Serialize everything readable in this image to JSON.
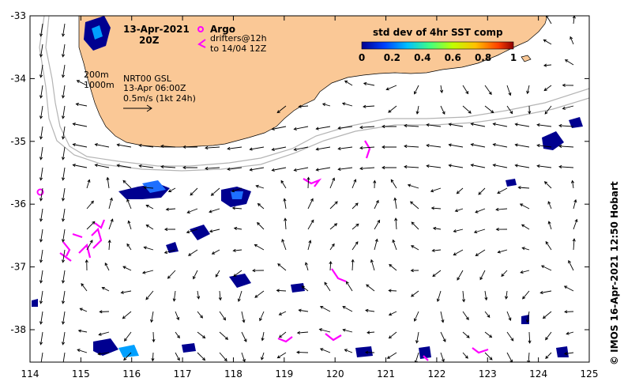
{
  "header": {
    "date": "13-Apr-2021",
    "time": "20Z"
  },
  "legend": {
    "argo_label": "Argo",
    "drifters_label_1": "drifters@12h",
    "drifters_label_2": "to 14/04 12Z",
    "argo_color": "#ff00ff"
  },
  "info": {
    "isobath_1": "200m",
    "isobath_2": "1000m",
    "source": "NRT00 GSL",
    "valid_time": "13-Apr 06:00Z",
    "scale": "0.5m/s (1kt 24h)"
  },
  "colorbar": {
    "title": "std dev of 4hr SST comp",
    "ticks": [
      "0",
      "0.2",
      "0.4",
      "0.6",
      "0.8",
      "1"
    ]
  },
  "credit": "© IMOS 16-Apr-2021 12:50 Hobart",
  "axes": {
    "x_ticks": [
      "114",
      "115",
      "116",
      "117",
      "118",
      "119",
      "120",
      "121",
      "122",
      "123",
      "124",
      "125"
    ],
    "y_ticks": [
      "-33",
      "-34",
      "-35",
      "-36",
      "-37",
      "-38"
    ]
  },
  "colors": {
    "land": "#fac896",
    "isobath": "#b4b4b4",
    "sst_low": "#000090",
    "sst_mid": "#00a0ff",
    "drifter": "#ff00ff"
  }
}
